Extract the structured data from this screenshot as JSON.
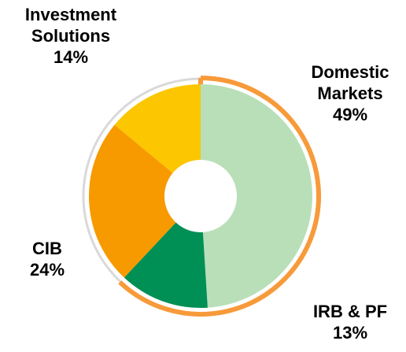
{
  "chart_data": {
    "type": "donut",
    "categories": [
      "Domestic Markets",
      "IRB & PF",
      "CIB",
      "Investment Solutions"
    ],
    "values": [
      49,
      13,
      24,
      14
    ],
    "value_labels": [
      "49%",
      "13%",
      "24%",
      "14%"
    ],
    "colors": [
      "#b9dfb9",
      "#008f55",
      "#f79a00",
      "#fcc600"
    ]
  }
}
